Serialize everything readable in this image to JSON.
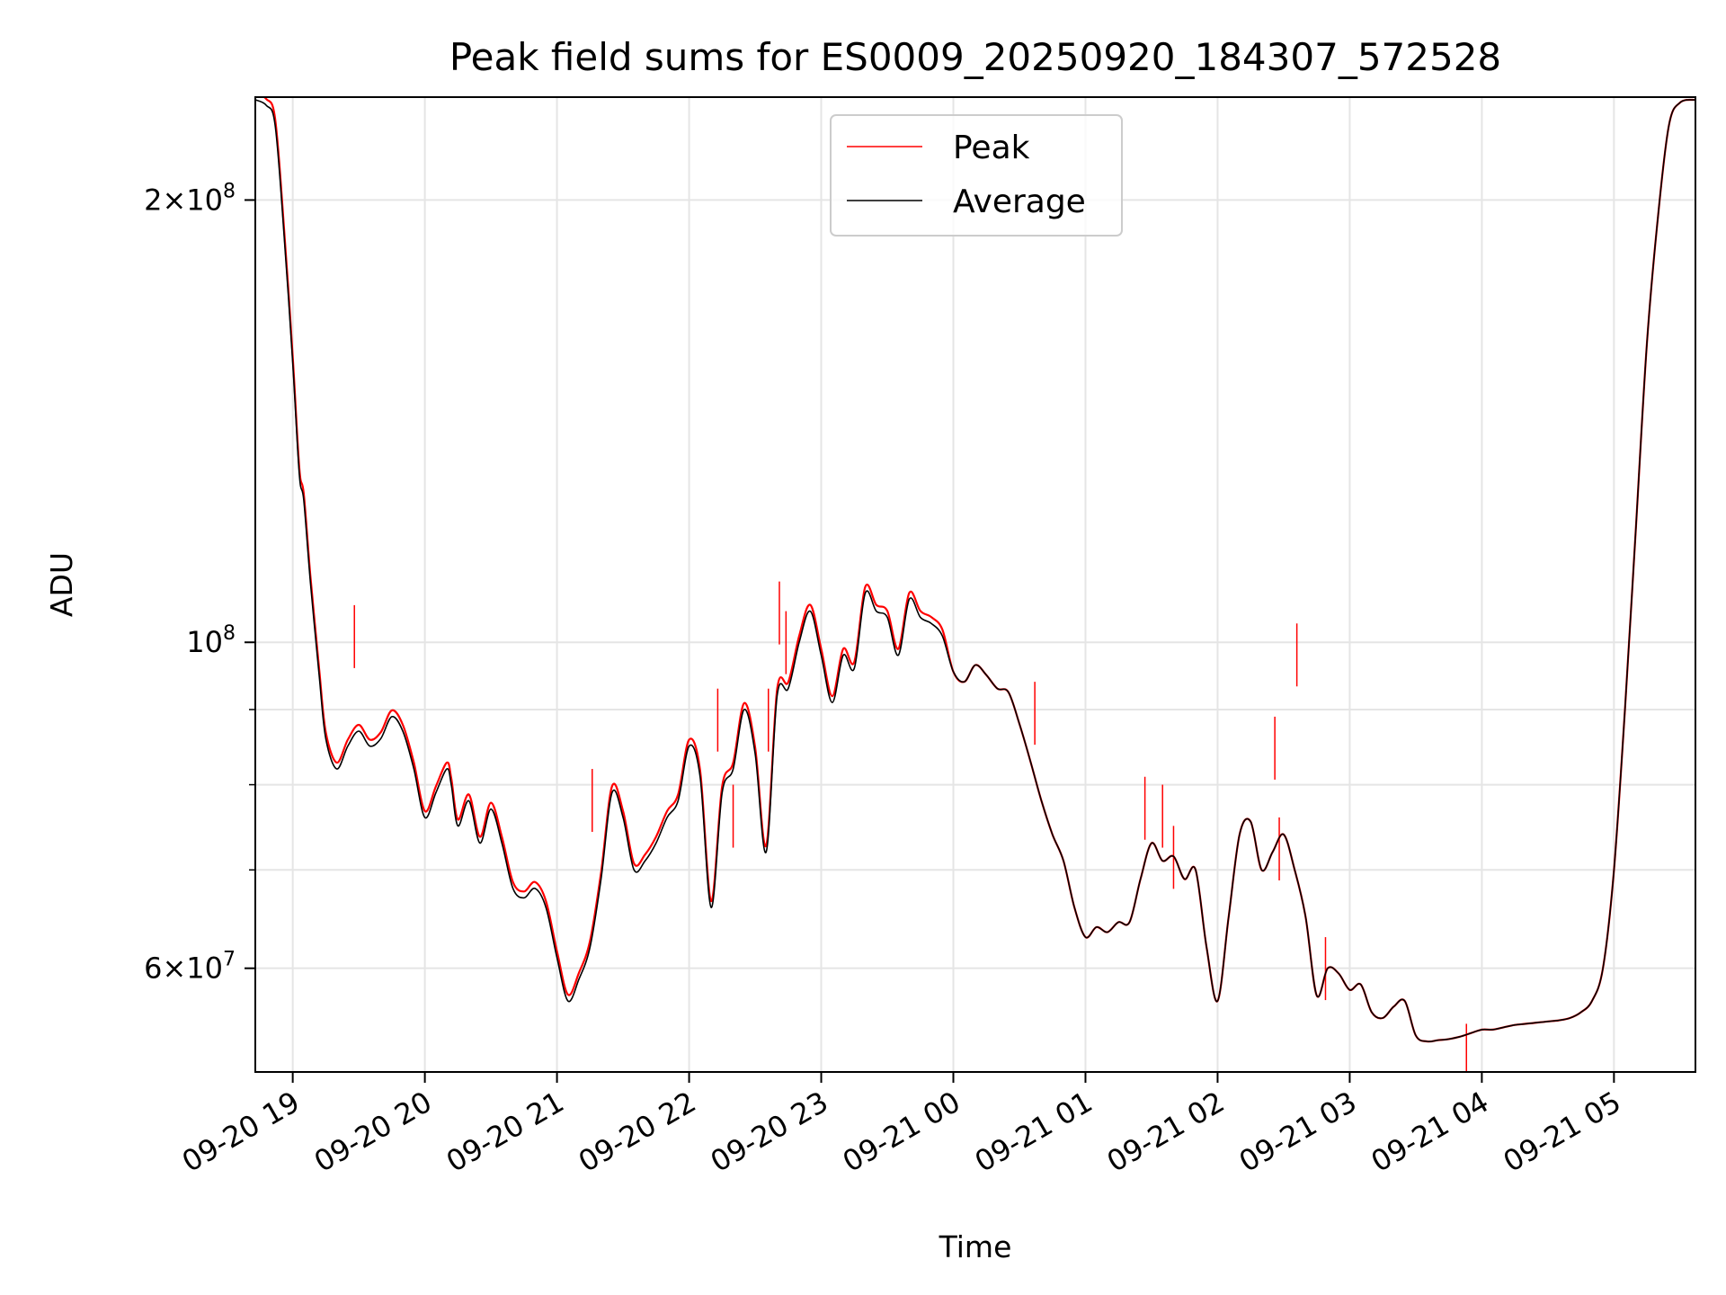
{
  "chart_data": {
    "type": "line",
    "title": "Peak field sums for ES0009_20250920_184307_572528",
    "xlabel": "Time",
    "ylabel": "ADU",
    "x_axis": {
      "kind": "datetime",
      "xlim": [
        "2025-09-20 18:43",
        "2025-09-21 05:37"
      ],
      "ticks": [
        {
          "value": "2025-09-20 19:00",
          "label": "09-20 19"
        },
        {
          "value": "2025-09-20 20:00",
          "label": "09-20 20"
        },
        {
          "value": "2025-09-20 21:00",
          "label": "09-20 21"
        },
        {
          "value": "2025-09-20 22:00",
          "label": "09-20 22"
        },
        {
          "value": "2025-09-20 23:00",
          "label": "09-20 23"
        },
        {
          "value": "2025-09-21 00:00",
          "label": "09-21 00"
        },
        {
          "value": "2025-09-21 01:00",
          "label": "09-21 01"
        },
        {
          "value": "2025-09-21 02:00",
          "label": "09-21 02"
        },
        {
          "value": "2025-09-21 03:00",
          "label": "09-21 03"
        },
        {
          "value": "2025-09-21 04:00",
          "label": "09-21 04"
        },
        {
          "value": "2025-09-21 05:00",
          "label": "09-21 05"
        }
      ]
    },
    "y_axis": {
      "scale": "log",
      "ylim": [
        51000000,
        235000000
      ],
      "major_ticks": [
        {
          "value": 60000000,
          "mantissa": "6",
          "base": "10",
          "exp": "7"
        },
        {
          "value": 100000000,
          "mantissa": "",
          "base": "10",
          "exp": "8"
        },
        {
          "value": 200000000,
          "mantissa": "2",
          "base": "10",
          "exp": "8"
        }
      ],
      "minor_gridlines": [
        70000000,
        80000000,
        90000000
      ]
    },
    "grid": true,
    "legend": {
      "placement": "upper center"
    },
    "series": [
      {
        "name": "Peak",
        "color": "#ff0000",
        "points": [
          [
            "2025-09-21 00:00",
            95500000
          ],
          [
            "2025-09-21 00:05",
            94000000
          ],
          [
            "2025-09-21 00:10",
            96500000
          ],
          [
            "2025-09-21 00:15",
            95000000
          ],
          [
            "2025-09-21 00:20",
            93000000
          ],
          [
            "2025-09-21 00:25",
            92500000
          ],
          [
            "2025-09-21 00:30",
            88000000
          ],
          [
            "2025-09-21 00:35",
            83000000
          ],
          [
            "2025-09-21 00:40",
            78000000
          ],
          [
            "2025-09-21 00:45",
            74000000
          ],
          [
            "2025-09-21 00:50",
            71000000
          ],
          [
            "2025-09-21 00:55",
            66000000
          ],
          [
            "2025-09-21 01:00",
            63000000
          ],
          [
            "2025-09-21 01:05",
            64000000
          ],
          [
            "2025-09-21 01:10",
            63500000
          ],
          [
            "2025-09-21 01:15",
            64500000
          ],
          [
            "2025-09-21 01:20",
            64500000
          ],
          [
            "2025-09-21 01:25",
            69000000
          ],
          [
            "2025-09-21 01:30",
            73000000
          ],
          [
            "2025-09-21 01:35",
            71000000
          ],
          [
            "2025-09-21 01:40",
            71500000
          ],
          [
            "2025-09-21 01:45",
            69000000
          ],
          [
            "2025-09-21 01:50",
            70000000
          ],
          [
            "2025-09-21 01:55",
            62000000
          ],
          [
            "2025-09-21 02:00",
            57000000
          ],
          [
            "2025-09-21 02:05",
            65000000
          ],
          [
            "2025-09-21 02:10",
            74000000
          ],
          [
            "2025-09-21 02:15",
            75500000
          ],
          [
            "2025-09-21 02:20",
            70000000
          ],
          [
            "2025-09-21 02:25",
            72000000
          ],
          [
            "2025-09-21 02:30",
            74000000
          ],
          [
            "2025-09-21 02:35",
            70000000
          ],
          [
            "2025-09-21 02:40",
            65000000
          ],
          [
            "2025-09-21 02:45",
            57500000
          ],
          [
            "2025-09-21 02:50",
            60000000
          ],
          [
            "2025-09-21 02:55",
            59500000
          ],
          [
            "2025-09-21 03:00",
            58000000
          ],
          [
            "2025-09-21 03:05",
            58500000
          ],
          [
            "2025-09-21 03:10",
            56000000
          ],
          [
            "2025-09-21 03:15",
            55500000
          ],
          [
            "2025-09-21 03:20",
            56500000
          ],
          [
            "2025-09-21 03:25",
            57000000
          ],
          [
            "2025-09-21 03:30",
            54000000
          ],
          [
            "2025-09-21 03:35",
            53500000
          ],
          [
            "2025-09-21 03:40",
            53600000
          ],
          [
            "2025-09-21 03:45",
            53700000
          ],
          [
            "2025-09-21 03:50",
            53900000
          ],
          [
            "2025-09-21 03:55",
            54200000
          ],
          [
            "2025-09-21 04:00",
            54500000
          ],
          [
            "2025-09-21 04:05",
            54500000
          ],
          [
            "2025-09-21 04:10",
            54700000
          ],
          [
            "2025-09-21 04:15",
            54900000
          ],
          [
            "2025-09-21 04:20",
            55000000
          ],
          [
            "2025-09-21 04:25",
            55100000
          ],
          [
            "2025-09-21 04:30",
            55200000
          ],
          [
            "2025-09-21 04:35",
            55300000
          ],
          [
            "2025-09-21 04:40",
            55500000
          ],
          [
            "2025-09-21 04:45",
            56000000
          ],
          [
            "2025-09-21 04:50",
            57000000
          ],
          [
            "2025-09-21 04:55",
            60000000
          ],
          [
            "2025-09-21 05:00",
            70000000
          ],
          [
            "2025-09-21 05:05",
            90000000
          ],
          [
            "2025-09-21 05:10",
            120000000
          ],
          [
            "2025-09-21 05:15",
            160000000
          ],
          [
            "2025-09-21 05:20",
            195000000
          ],
          [
            "2025-09-21 05:25",
            225000000
          ],
          [
            "2025-09-21 05:30",
            233000000
          ],
          [
            "2025-09-21 05:37",
            234000000
          ]
        ],
        "spikes": [
          [
            "2025-09-20 19:28",
            106000000
          ],
          [
            "2025-09-20 21:16",
            82000000
          ],
          [
            "2025-09-20 22:13",
            93000000
          ],
          [
            "2025-09-20 22:20",
            80000000
          ],
          [
            "2025-09-20 22:36",
            93000000
          ],
          [
            "2025-09-20 22:41",
            110000000
          ],
          [
            "2025-09-20 22:44",
            105000000
          ],
          [
            "2025-09-21 00:37",
            94000000
          ],
          [
            "2025-09-21 01:27",
            81000000
          ],
          [
            "2025-09-21 01:35",
            80000000
          ],
          [
            "2025-09-21 01:40",
            75000000
          ],
          [
            "2025-09-21 02:26",
            89000000
          ],
          [
            "2025-09-21 02:28",
            76000000
          ],
          [
            "2025-09-21 02:36",
            103000000
          ],
          [
            "2025-09-21 02:49",
            63000000
          ],
          [
            "2025-09-21 03:53",
            55000000
          ]
        ]
      },
      {
        "name": "Average",
        "color": "#000000",
        "points": [
          [
            "2025-09-20 18:43",
            234000000
          ],
          [
            "2025-09-20 18:48",
            232000000
          ],
          [
            "2025-09-20 18:52",
            225000000
          ],
          [
            "2025-09-20 18:56",
            190000000
          ],
          [
            "2025-09-20 19:00",
            155000000
          ],
          [
            "2025-09-20 19:03",
            130000000
          ],
          [
            "2025-09-20 19:05",
            125000000
          ],
          [
            "2025-09-20 19:08",
            110000000
          ],
          [
            "2025-09-20 19:12",
            95000000
          ],
          [
            "2025-09-20 19:15",
            86000000
          ],
          [
            "2025-09-20 19:20",
            82000000
          ],
          [
            "2025-09-20 19:25",
            85000000
          ],
          [
            "2025-09-20 19:30",
            87000000
          ],
          [
            "2025-09-20 19:35",
            85000000
          ],
          [
            "2025-09-20 19:40",
            86000000
          ],
          [
            "2025-09-20 19:45",
            89000000
          ],
          [
            "2025-09-20 19:50",
            87000000
          ],
          [
            "2025-09-20 19:55",
            82000000
          ],
          [
            "2025-09-20 20:00",
            76000000
          ],
          [
            "2025-09-20 20:05",
            79000000
          ],
          [
            "2025-09-20 20:10",
            82000000
          ],
          [
            "2025-09-20 20:12",
            80000000
          ],
          [
            "2025-09-20 20:15",
            75000000
          ],
          [
            "2025-09-20 20:20",
            78000000
          ],
          [
            "2025-09-20 20:25",
            73000000
          ],
          [
            "2025-09-20 20:30",
            77000000
          ],
          [
            "2025-09-20 20:35",
            73000000
          ],
          [
            "2025-09-20 20:40",
            68000000
          ],
          [
            "2025-09-20 20:45",
            67000000
          ],
          [
            "2025-09-20 20:50",
            68000000
          ],
          [
            "2025-09-20 20:55",
            66000000
          ],
          [
            "2025-09-20 21:00",
            61000000
          ],
          [
            "2025-09-20 21:05",
            57000000
          ],
          [
            "2025-09-20 21:10",
            59000000
          ],
          [
            "2025-09-20 21:15",
            62000000
          ],
          [
            "2025-09-20 21:20",
            69000000
          ],
          [
            "2025-09-20 21:25",
            79000000
          ],
          [
            "2025-09-20 21:30",
            76000000
          ],
          [
            "2025-09-20 21:35",
            70000000
          ],
          [
            "2025-09-20 21:40",
            71000000
          ],
          [
            "2025-09-20 21:45",
            73000000
          ],
          [
            "2025-09-20 21:50",
            76000000
          ],
          [
            "2025-09-20 21:55",
            78000000
          ],
          [
            "2025-09-20 22:00",
            85000000
          ],
          [
            "2025-09-20 22:05",
            81000000
          ],
          [
            "2025-09-20 22:10",
            66000000
          ],
          [
            "2025-09-20 22:15",
            79000000
          ],
          [
            "2025-09-20 22:20",
            82000000
          ],
          [
            "2025-09-20 22:25",
            90000000
          ],
          [
            "2025-09-20 22:30",
            84000000
          ],
          [
            "2025-09-20 22:35",
            72000000
          ],
          [
            "2025-09-20 22:40",
            92000000
          ],
          [
            "2025-09-20 22:45",
            93000000
          ],
          [
            "2025-09-20 22:50",
            100000000
          ],
          [
            "2025-09-20 22:55",
            105000000
          ],
          [
            "2025-09-20 23:00",
            98000000
          ],
          [
            "2025-09-20 23:05",
            91000000
          ],
          [
            "2025-09-20 23:10",
            98000000
          ],
          [
            "2025-09-20 23:15",
            96000000
          ],
          [
            "2025-09-20 23:20",
            108000000
          ],
          [
            "2025-09-20 23:25",
            105000000
          ],
          [
            "2025-09-20 23:30",
            104000000
          ],
          [
            "2025-09-20 23:35",
            98000000
          ],
          [
            "2025-09-20 23:40",
            107000000
          ],
          [
            "2025-09-20 23:45",
            104000000
          ],
          [
            "2025-09-20 23:50",
            103000000
          ],
          [
            "2025-09-20 23:55",
            101000000
          ]
        ]
      }
    ]
  }
}
